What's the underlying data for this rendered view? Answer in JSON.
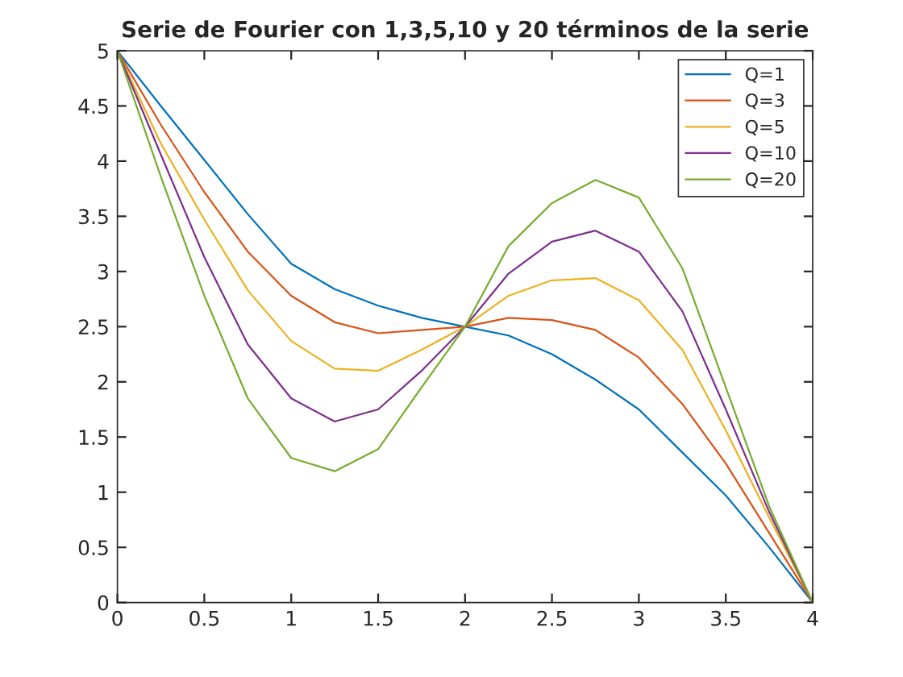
{
  "chart_data": {
    "type": "line",
    "title": "Serie de Fourier con 1,3,5,10 y 20 términos de la serie",
    "x": [
      0,
      0.25,
      0.5,
      0.75,
      1,
      1.25,
      1.5,
      1.75,
      2,
      2.25,
      2.5,
      2.75,
      3,
      3.25,
      3.5,
      3.75,
      4
    ],
    "series": [
      {
        "name": "Q=1",
        "color": "#0072bd",
        "values": [
          5,
          4.5,
          4.01,
          3.52,
          3.07,
          2.84,
          2.69,
          2.58,
          2.5,
          2.42,
          2.25,
          2.02,
          1.75,
          1.36,
          0.97,
          0.5,
          0
        ]
      },
      {
        "name": "Q=3",
        "color": "#d95319",
        "values": [
          5,
          4.33,
          3.72,
          3.18,
          2.78,
          2.54,
          2.44,
          2.47,
          2.5,
          2.58,
          2.56,
          2.47,
          2.22,
          1.8,
          1.26,
          0.63,
          0
        ]
      },
      {
        "name": "Q=5",
        "color": "#edb120",
        "values": [
          5,
          4.16,
          3.47,
          2.83,
          2.37,
          2.12,
          2.1,
          2.29,
          2.5,
          2.78,
          2.92,
          2.94,
          2.74,
          2.29,
          1.56,
          0.77,
          0
        ]
      },
      {
        "name": "Q=10",
        "color": "#7e2f8e",
        "values": [
          5,
          4.06,
          3.13,
          2.34,
          1.85,
          1.64,
          1.75,
          2.1,
          2.5,
          2.98,
          3.27,
          3.37,
          3.18,
          2.64,
          1.75,
          0.82,
          0
        ]
      },
      {
        "name": "Q=20",
        "color": "#77ac30",
        "values": [
          5,
          3.86,
          2.78,
          1.85,
          1.31,
          1.19,
          1.39,
          1.95,
          2.5,
          3.23,
          3.62,
          3.83,
          3.67,
          3.03,
          1.95,
          0.87,
          0
        ]
      }
    ],
    "xlim": [
      0,
      4
    ],
    "xticks": [
      0,
      0.5,
      1,
      1.5,
      2,
      2.5,
      3,
      3.5,
      4
    ],
    "ylim": [
      0,
      5
    ],
    "yticks": [
      0,
      0.5,
      1,
      1.5,
      2,
      2.5,
      3,
      3.5,
      4,
      4.5,
      5
    ],
    "grid": false,
    "legend": "top right",
    "marker": "none",
    "line_style": "solid"
  }
}
